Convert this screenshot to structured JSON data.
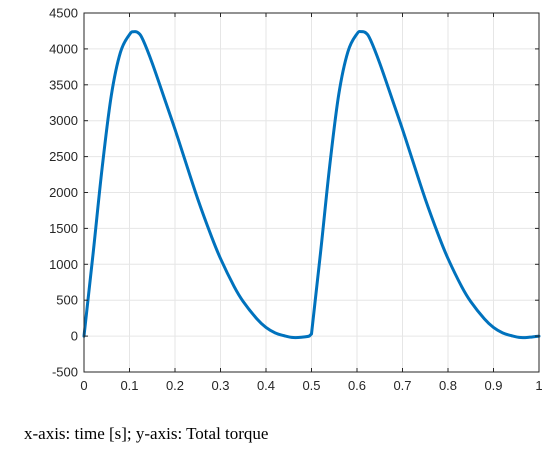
{
  "caption": "x-axis: time [s]; y-axis: Total torque",
  "chart_data": {
    "type": "line",
    "title": "",
    "xlabel": "",
    "ylabel": "",
    "xlim": [
      0,
      1
    ],
    "ylim": [
      -500,
      4500
    ],
    "xticks": [
      0,
      0.1,
      0.2,
      0.3,
      0.4,
      0.5,
      0.6,
      0.7,
      0.8,
      0.9,
      1
    ],
    "xtick_labels": [
      "0",
      "0.1",
      "0.2",
      "0.3",
      "0.4",
      "0.5",
      "0.6",
      "0.7",
      "0.8",
      "0.9",
      "1"
    ],
    "yticks": [
      -500,
      0,
      500,
      1000,
      1500,
      2000,
      2500,
      3000,
      3500,
      4000,
      4500
    ],
    "ytick_labels": [
      "-500",
      "0",
      "500",
      "1000",
      "1500",
      "2000",
      "2500",
      "3000",
      "3500",
      "4000",
      "4500"
    ],
    "grid": true,
    "line_color": "#0072BD",
    "series": [
      {
        "x": [
          0,
          0.02,
          0.04,
          0.06,
          0.08,
          0.1,
          0.11,
          0.12,
          0.13,
          0.15,
          0.18,
          0.2,
          0.22,
          0.25,
          0.28,
          0.3,
          0.33,
          0.35,
          0.38,
          0.4,
          0.42,
          0.44,
          0.46,
          0.48,
          0.495,
          0.5,
          0.52,
          0.54,
          0.56,
          0.58,
          0.6,
          0.61,
          0.62,
          0.63,
          0.65,
          0.68,
          0.7,
          0.72,
          0.75,
          0.78,
          0.8,
          0.83,
          0.85,
          0.88,
          0.9,
          0.92,
          0.94,
          0.96,
          0.98,
          1.0
        ],
        "y": [
          0,
          1150,
          2350,
          3350,
          3950,
          4200,
          4240,
          4220,
          4120,
          3800,
          3250,
          2880,
          2490,
          1910,
          1390,
          1080,
          690,
          480,
          240,
          120,
          45,
          5,
          -20,
          -15,
          0,
          30,
          1170,
          2370,
          3370,
          3960,
          4210,
          4240,
          4220,
          4120,
          3800,
          3250,
          2880,
          2490,
          1910,
          1390,
          1080,
          690,
          480,
          240,
          120,
          45,
          5,
          -20,
          -15,
          0
        ]
      }
    ]
  }
}
